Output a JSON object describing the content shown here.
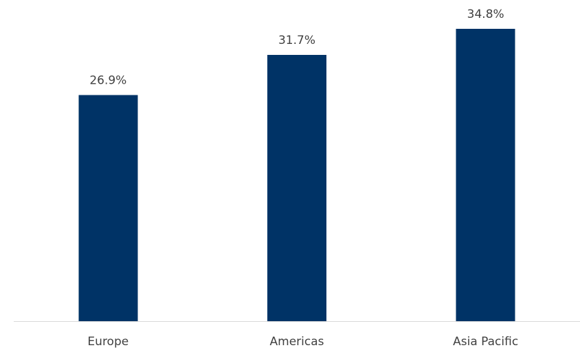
{
  "chart_data": {
    "type": "bar",
    "categories": [
      "Europe",
      "Americas",
      "Asia Pacific"
    ],
    "series": [
      {
        "values": [
          26.9,
          31.7,
          34.8
        ],
        "labels": [
          "26.9%",
          "31.7%",
          "34.8%"
        ],
        "color": "#003366"
      }
    ],
    "title": "",
    "xlabel": "",
    "ylabel": "",
    "ylim": [
      0,
      34.8
    ],
    "grid": false,
    "legend": "none",
    "colors": {
      "bar": "#003366",
      "axis": "#d9d9d9",
      "text": "#404040"
    }
  }
}
